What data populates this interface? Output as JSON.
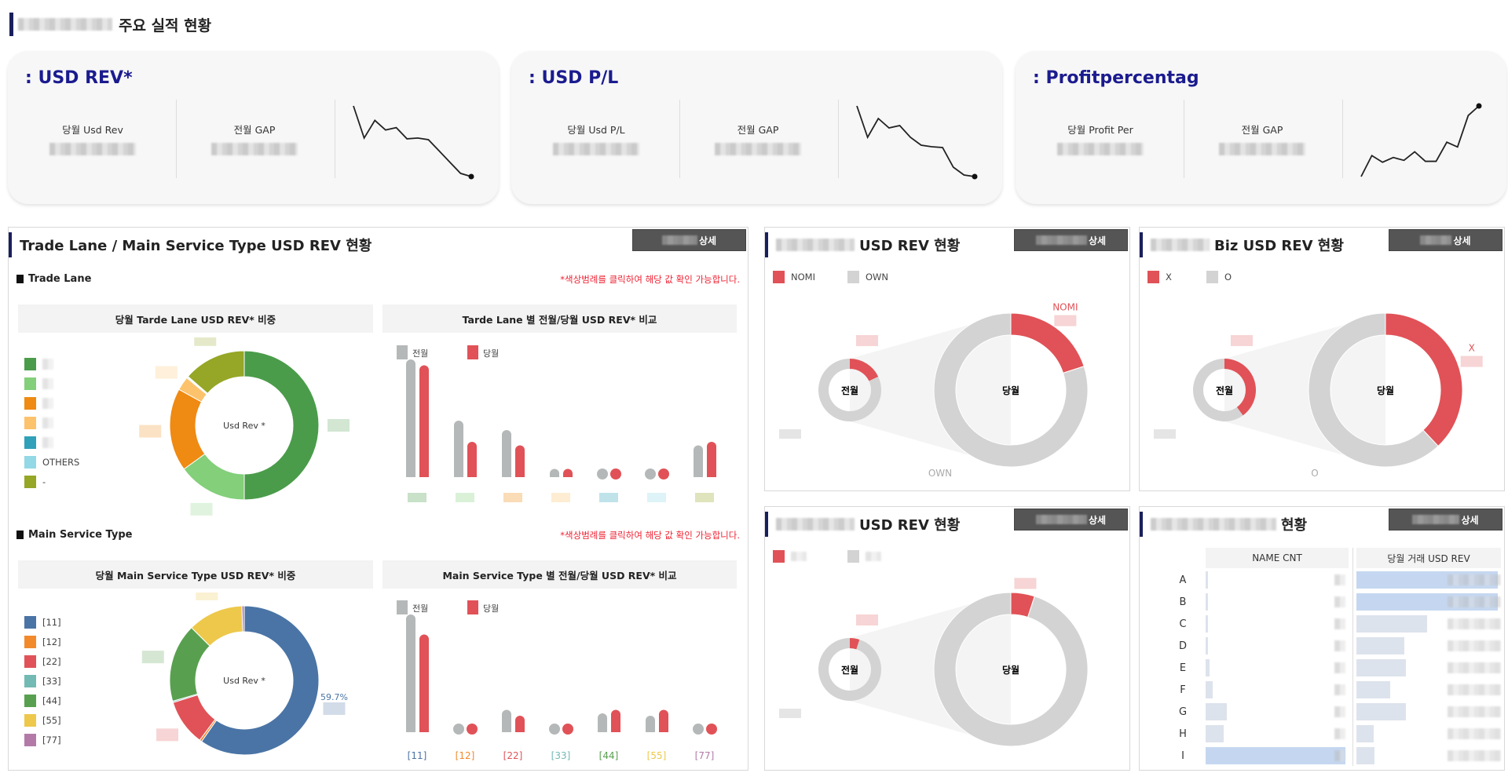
{
  "page": {
    "title": "주요 실적 현황"
  },
  "kpi_cards": [
    {
      "title": ": USD REV*",
      "cur_label": "당월 Usd Rev",
      "gap_label": "전월 GAP",
      "trend": [
        10,
        6,
        8.2,
        7,
        7.3,
        5.9,
        6,
        5.8,
        4.4,
        3,
        1.6,
        1.2
      ]
    },
    {
      "title": ": USD P/L",
      "cur_label": "당월 Usd P/L",
      "gap_label": "전월 GAP",
      "trend": [
        10,
        6,
        8.4,
        7.2,
        7.5,
        6,
        5,
        4.8,
        4.7,
        2.2,
        1.2,
        1
      ]
    },
    {
      "title": ": Profitpercentag",
      "cur_label": "당월 Profit Per",
      "gap_label": "전월 GAP",
      "trend": [
        1,
        3.2,
        2.5,
        3,
        2.7,
        3.6,
        2.6,
        2.6,
        4.6,
        4.1,
        7.4,
        8.4
      ]
    }
  ],
  "trade_panel": {
    "title": "Trade Lane / Main Service Type USD REV 현황",
    "detail_label": "상세",
    "hint": "*색상범례를 클릭하여 해당 값 확인 가능합니다.",
    "trade_lane": {
      "section": "Trade Lane",
      "donut_title": "당월 Tarde Lane USD REV*  비중",
      "bar_title": "Tarde Lane 별 전월/당월 USD REV* 비교",
      "center": "Usd Rev *",
      "legend": [
        {
          "label": "",
          "color": "#4a9c4a"
        },
        {
          "label": "",
          "color": "#83cf7a"
        },
        {
          "label": "",
          "color": "#ef8a12"
        },
        {
          "label": "",
          "color": "#fdc26c"
        },
        {
          "label": "",
          "color": "#30a1b8"
        },
        {
          "label": "OTHERS",
          "color": "#93d8e6"
        },
        {
          "label": "-",
          "color": "#96a626"
        }
      ],
      "shares": [
        50,
        15,
        18,
        3,
        0.2,
        0.2,
        13.6
      ],
      "prev": [
        100,
        48,
        40,
        7,
        0,
        0,
        27
      ],
      "cur": [
        95,
        30,
        27,
        7,
        0,
        0,
        30
      ],
      "bar_labels": [
        "",
        "",
        "",
        "",
        "",
        "",
        "-"
      ],
      "legend_prev": "전월",
      "legend_cur": "당월"
    },
    "main_service": {
      "section": "Main Service Type",
      "donut_title": "당월 Main Service Type USD REV*  비중",
      "bar_title": "Main Service Type 별 전월/당월 USD REV* 비교",
      "center": "Usd Rev *",
      "pct_label": "59.7%",
      "legend": [
        {
          "label": "[11]",
          "color": "#4a74a5"
        },
        {
          "label": "[12]",
          "color": "#f28a2c"
        },
        {
          "label": "[22]",
          "color": "#e05257"
        },
        {
          "label": "[33]",
          "color": "#72bab3"
        },
        {
          "label": "[44]",
          "color": "#58a04f"
        },
        {
          "label": "[55]",
          "color": "#edc84a"
        },
        {
          "label": "[77]",
          "color": "#b37aa8"
        }
      ],
      "shares": [
        59.7,
        0.5,
        10,
        0.3,
        17,
        12,
        0.5
      ],
      "prev": [
        100,
        2,
        19,
        2,
        16,
        14,
        2
      ],
      "cur": [
        83,
        2,
        14,
        2,
        19,
        19,
        2
      ],
      "legend_prev": "전월",
      "legend_cur": "당월"
    }
  },
  "donut_panels": [
    {
      "title": "USD REV 현황",
      "detail_label": "상세",
      "legend": [
        "NOMI",
        "OWN"
      ],
      "prev_label": "전월",
      "cur_label": "당월",
      "prev_share": 18,
      "cur_share": 20,
      "slice_label": "NOMI",
      "rest_label": "OWN"
    },
    {
      "title": "Biz USD REV 현황",
      "detail_label": "상세",
      "legend": [
        "X",
        "O"
      ],
      "prev_label": "전월",
      "cur_label": "당월",
      "prev_share": 40,
      "cur_share": 38,
      "slice_label": "X",
      "rest_label": "O"
    },
    {
      "title": "USD REV 현황",
      "detail_label": "상세",
      "legend": [
        "",
        ""
      ],
      "prev_label": "전월",
      "cur_label": "당월",
      "prev_share": 5,
      "cur_share": 5,
      "slice_label": "",
      "rest_label": ""
    }
  ],
  "table_panel": {
    "title": "현황",
    "detail_label": "상세",
    "col1": "NAME CNT",
    "col2": "당월 거래 USD REV",
    "rows": [
      {
        "label": "A",
        "cnt": 0.01,
        "rev": 1.0
      },
      {
        "label": "B",
        "cnt": 0.01,
        "rev": 1.0
      },
      {
        "label": "C",
        "cnt": 0.01,
        "rev": 0.5
      },
      {
        "label": "D",
        "cnt": 0.01,
        "rev": 0.34
      },
      {
        "label": "E",
        "cnt": 0.03,
        "rev": 0.35
      },
      {
        "label": "F",
        "cnt": 0.05,
        "rev": 0.24
      },
      {
        "label": "G",
        "cnt": 0.15,
        "rev": 0.35
      },
      {
        "label": "H",
        "cnt": 0.13,
        "rev": 0.12
      },
      {
        "label": "I",
        "cnt": 1.0,
        "rev": 0.13
      }
    ]
  },
  "colors": {
    "accent": "#1b1b8f",
    "red": "#e05257",
    "grey": "#d3d3d3",
    "bar_grey": "#b5b8b8"
  }
}
